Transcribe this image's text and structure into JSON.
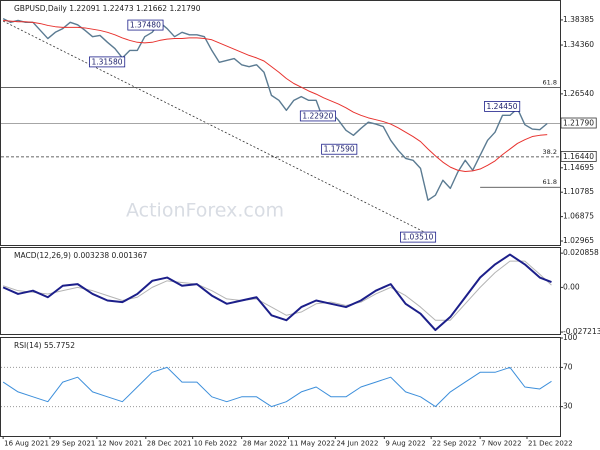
{
  "chart_data": [
    {
      "type": "line",
      "title": "GBPUSD,Daily 1.22091 1.22473 1.21662 1.21790",
      "watermark": "ActionForex.com",
      "x": [
        "2021-08-16",
        "2021-08-23",
        "2021-08-30",
        "2021-09-06",
        "2021-09-13",
        "2021-09-20",
        "2021-09-27",
        "2021-10-04",
        "2021-10-11",
        "2021-10-18",
        "2021-10-25",
        "2021-11-01",
        "2021-11-08",
        "2021-11-15",
        "2021-11-22",
        "2021-11-29",
        "2021-12-06",
        "2021-12-13",
        "2021-12-20",
        "2021-12-27",
        "2022-01-03",
        "2022-01-10",
        "2022-01-17",
        "2022-01-24",
        "2022-01-31",
        "2022-02-07",
        "2022-02-14",
        "2022-02-21",
        "2022-02-28",
        "2022-03-07",
        "2022-03-14",
        "2022-03-21",
        "2022-03-28",
        "2022-04-04",
        "2022-04-11",
        "2022-04-18",
        "2022-04-25",
        "2022-05-02",
        "2022-05-09",
        "2022-05-16",
        "2022-05-23",
        "2022-05-30",
        "2022-06-06",
        "2022-06-13",
        "2022-06-20",
        "2022-06-27",
        "2022-07-04",
        "2022-07-11",
        "2022-07-18",
        "2022-07-25",
        "2022-08-01",
        "2022-08-08",
        "2022-08-15",
        "2022-08-22",
        "2022-08-29",
        "2022-09-05",
        "2022-09-12",
        "2022-09-19",
        "2022-09-26",
        "2022-10-03",
        "2022-10-10",
        "2022-10-17",
        "2022-10-24",
        "2022-10-31",
        "2022-11-07",
        "2022-11-14",
        "2022-11-21",
        "2022-11-28",
        "2022-12-05",
        "2022-12-12",
        "2022-12-19",
        "2022-12-26",
        "2023-01-02",
        "2023-01-09"
      ],
      "series": [
        {
          "color": "#5b7b92",
          "width": 1.4,
          "values": [
            1.386,
            1.38,
            1.383,
            1.38,
            1.38,
            1.367,
            1.354,
            1.364,
            1.37,
            1.38,
            1.376,
            1.367,
            1.357,
            1.359,
            1.348,
            1.338,
            1.323,
            1.335,
            1.335,
            1.357,
            1.364,
            1.38,
            1.37,
            1.357,
            1.364,
            1.36,
            1.36,
            1.357,
            1.335,
            1.316,
            1.319,
            1.322,
            1.312,
            1.309,
            1.312,
            1.3,
            1.263,
            1.255,
            1.239,
            1.255,
            1.261,
            1.255,
            1.255,
            1.223,
            1.236,
            1.223,
            1.207,
            1.199,
            1.21,
            1.22,
            1.217,
            1.213,
            1.191,
            1.175,
            1.162,
            1.159,
            1.146,
            1.095,
            1.103,
            1.127,
            1.114,
            1.14,
            1.159,
            1.143,
            1.167,
            1.191,
            1.204,
            1.231,
            1.231,
            1.242,
            1.216,
            1.209,
            1.208,
            1.2179
          ]
        },
        {
          "color": "#e8332f",
          "width": 1,
          "values": [
            1.383,
            1.382,
            1.381,
            1.381,
            1.38,
            1.378,
            1.375,
            1.373,
            1.372,
            1.372,
            1.372,
            1.371,
            1.369,
            1.367,
            1.364,
            1.36,
            1.355,
            1.351,
            1.348,
            1.347,
            1.348,
            1.351,
            1.353,
            1.354,
            1.354,
            1.355,
            1.355,
            1.354,
            1.352,
            1.347,
            1.342,
            1.337,
            1.332,
            1.327,
            1.323,
            1.318,
            1.309,
            1.3,
            1.29,
            1.282,
            1.276,
            1.27,
            1.265,
            1.259,
            1.254,
            1.249,
            1.243,
            1.236,
            1.231,
            1.227,
            1.224,
            1.221,
            1.217,
            1.211,
            1.204,
            1.197,
            1.189,
            1.177,
            1.166,
            1.156,
            1.148,
            1.143,
            1.141,
            1.142,
            1.145,
            1.151,
            1.158,
            1.168,
            1.177,
            1.186,
            1.192,
            1.197,
            1.199,
            1.2
          ]
        }
      ],
      "xlim": [
        "2021-08-14",
        "2023-01-21"
      ],
      "xticks": [
        {
          "value": "2021-08-16",
          "label": "16 Aug 2021"
        },
        {
          "value": "2021-09-29",
          "label": "29 Sep 2021"
        },
        {
          "value": "2021-11-12",
          "label": "12 Nov 2021"
        },
        {
          "value": "2021-12-28",
          "label": "28 Dec 2021"
        },
        {
          "value": "2022-02-10",
          "label": "10 Feb 2022"
        },
        {
          "value": "2022-03-28",
          "label": "28 Mar 2022"
        },
        {
          "value": "2022-05-11",
          "label": "11 May 2022"
        },
        {
          "value": "2022-06-24",
          "label": "24 Jun 2022"
        },
        {
          "value": "2022-08-09",
          "label": "9 Aug 2022"
        },
        {
          "value": "2022-09-22",
          "label": "22 Sep 2022"
        },
        {
          "value": "2022-11-07",
          "label": "7 Nov 2022"
        },
        {
          "value": "2022-12-21",
          "label": "21 Dec 2022"
        }
      ],
      "ylim": [
        1.02327,
        1.41416
      ],
      "yticks": [
        1.38385,
        {
          "value": 1.3436,
          "label": "1.34360"
        },
        {
          "value": 1.2654,
          "label": "1.26540"
        },
        1.14695,
        1.10785,
        1.06875,
        1.02965
      ],
      "last": {
        "value": 1.2179,
        "label": "1.21790"
      },
      "levels": [
        {
          "value": 1.2754,
          "label": "61.8",
          "dash": false,
          "from": "2021-08-14"
        },
        {
          "value": 1.1644,
          "label": "38.2",
          "price_label": "1.16440",
          "dash": true,
          "from": "2021-08-14"
        },
        {
          "value": 1.1158,
          "label": "61.8",
          "dash": false,
          "from": "2022-11-07"
        }
      ],
      "trendline": {
        "x": [
          "2021-08-16",
          "2022-09-26"
        ],
        "y": [
          1.382,
          1.0351
        ]
      },
      "annotations": [
        {
          "x": "2022-01-13",
          "value": 1.3748,
          "label": "1.37480"
        },
        {
          "x": "2021-12-08",
          "value": 1.3158,
          "label": "1.31580"
        },
        {
          "x": "2022-06-24",
          "value": 1.2292,
          "label": "1.22920"
        },
        {
          "x": "2022-07-14",
          "value": 1.1759,
          "label": "1.17590"
        },
        {
          "x": "2022-12-14",
          "value": 1.2445,
          "label": "1.24450"
        },
        {
          "x": "2022-09-26",
          "value": 1.0351,
          "label": "1.03510"
        }
      ]
    },
    {
      "type": "line",
      "title": "MACD(12,26,9) 0.003238 0.001367",
      "x": [
        "2021-08-16",
        "2021-08-30",
        "2021-09-13",
        "2021-09-27",
        "2021-10-11",
        "2021-10-25",
        "2021-11-08",
        "2021-11-22",
        "2021-12-06",
        "2021-12-20",
        "2022-01-03",
        "2022-01-17",
        "2022-01-31",
        "2022-02-14",
        "2022-02-28",
        "2022-03-14",
        "2022-03-28",
        "2022-04-11",
        "2022-04-25",
        "2022-05-09",
        "2022-05-23",
        "2022-06-06",
        "2022-06-20",
        "2022-07-04",
        "2022-07-18",
        "2022-08-01",
        "2022-08-15",
        "2022-08-29",
        "2022-09-12",
        "2022-09-26",
        "2022-10-10",
        "2022-10-24",
        "2022-11-07",
        "2022-11-21",
        "2022-12-05",
        "2022-12-19",
        "2023-01-02",
        "2023-01-13"
      ],
      "series": [
        {
          "color": "#b4b4b4",
          "width": 1,
          "values": [
            0.001,
            -0.002,
            -0.003,
            -0.004,
            -0.002,
            0,
            -0.002,
            -0.005,
            -0.008,
            -0.006,
            0,
            0.004,
            0.003,
            0.002,
            -0.002,
            -0.007,
            -0.008,
            -0.007,
            -0.012,
            -0.017,
            -0.015,
            -0.01,
            -0.009,
            -0.011,
            -0.009,
            -0.004,
            0,
            -0.005,
            -0.012,
            -0.02,
            -0.02,
            -0.01,
            0,
            0.009,
            0.016,
            0.016,
            0.008,
            0.001367
          ]
        },
        {
          "color": "#1c1f8a",
          "width": 2,
          "values": [
            0,
            -0.004,
            -0.002,
            -0.006,
            0.001,
            0.002,
            -0.004,
            -0.008,
            -0.009,
            -0.004,
            0.004,
            0.006,
            0.001,
            0.002,
            -0.005,
            -0.01,
            -0.008,
            -0.006,
            -0.017,
            -0.02,
            -0.012,
            -0.008,
            -0.01,
            -0.012,
            -0.008,
            -0.002,
            0.002,
            -0.01,
            -0.016,
            -0.026,
            -0.018,
            -0.006,
            0.006,
            0.014,
            0.02,
            0.014,
            0.006,
            0.003238
          ]
        }
      ],
      "xlim": [
        "2021-08-14",
        "2023-01-21"
      ],
      "ylim": [
        -0.0284,
        0.024
      ],
      "yticks": [
        0.020858,
        {
          "value": 0,
          "label": "0.00"
        },
        -0.027213
      ]
    },
    {
      "type": "line",
      "title": "RSI(14) 55.7752",
      "x": [
        "2021-08-16",
        "2021-08-30",
        "2021-09-13",
        "2021-09-27",
        "2021-10-11",
        "2021-10-25",
        "2021-11-08",
        "2021-11-22",
        "2021-12-06",
        "2021-12-20",
        "2022-01-03",
        "2022-01-17",
        "2022-01-31",
        "2022-02-14",
        "2022-02-28",
        "2022-03-14",
        "2022-03-28",
        "2022-04-11",
        "2022-04-25",
        "2022-05-09",
        "2022-05-23",
        "2022-06-06",
        "2022-06-20",
        "2022-07-04",
        "2022-07-18",
        "2022-08-01",
        "2022-08-15",
        "2022-08-29",
        "2022-09-12",
        "2022-09-26",
        "2022-10-10",
        "2022-10-24",
        "2022-11-07",
        "2022-11-21",
        "2022-12-05",
        "2022-12-19",
        "2023-01-02",
        "2023-01-13"
      ],
      "series": [
        {
          "color": "#3d8fdb",
          "width": 1,
          "values": [
            55,
            45,
            40,
            35,
            55,
            60,
            45,
            40,
            35,
            50,
            65,
            70,
            55,
            55,
            40,
            35,
            40,
            40,
            30,
            35,
            45,
            50,
            40,
            40,
            50,
            55,
            60,
            45,
            40,
            30,
            45,
            55,
            65,
            65,
            70,
            50,
            48,
            55.7752
          ]
        }
      ],
      "xlim": [
        "2021-08-14",
        "2023-01-21"
      ],
      "ylim": [
        0,
        100
      ],
      "yticks": [
        100,
        70,
        30
      ],
      "reference_lines": [
        70,
        30
      ]
    }
  ]
}
